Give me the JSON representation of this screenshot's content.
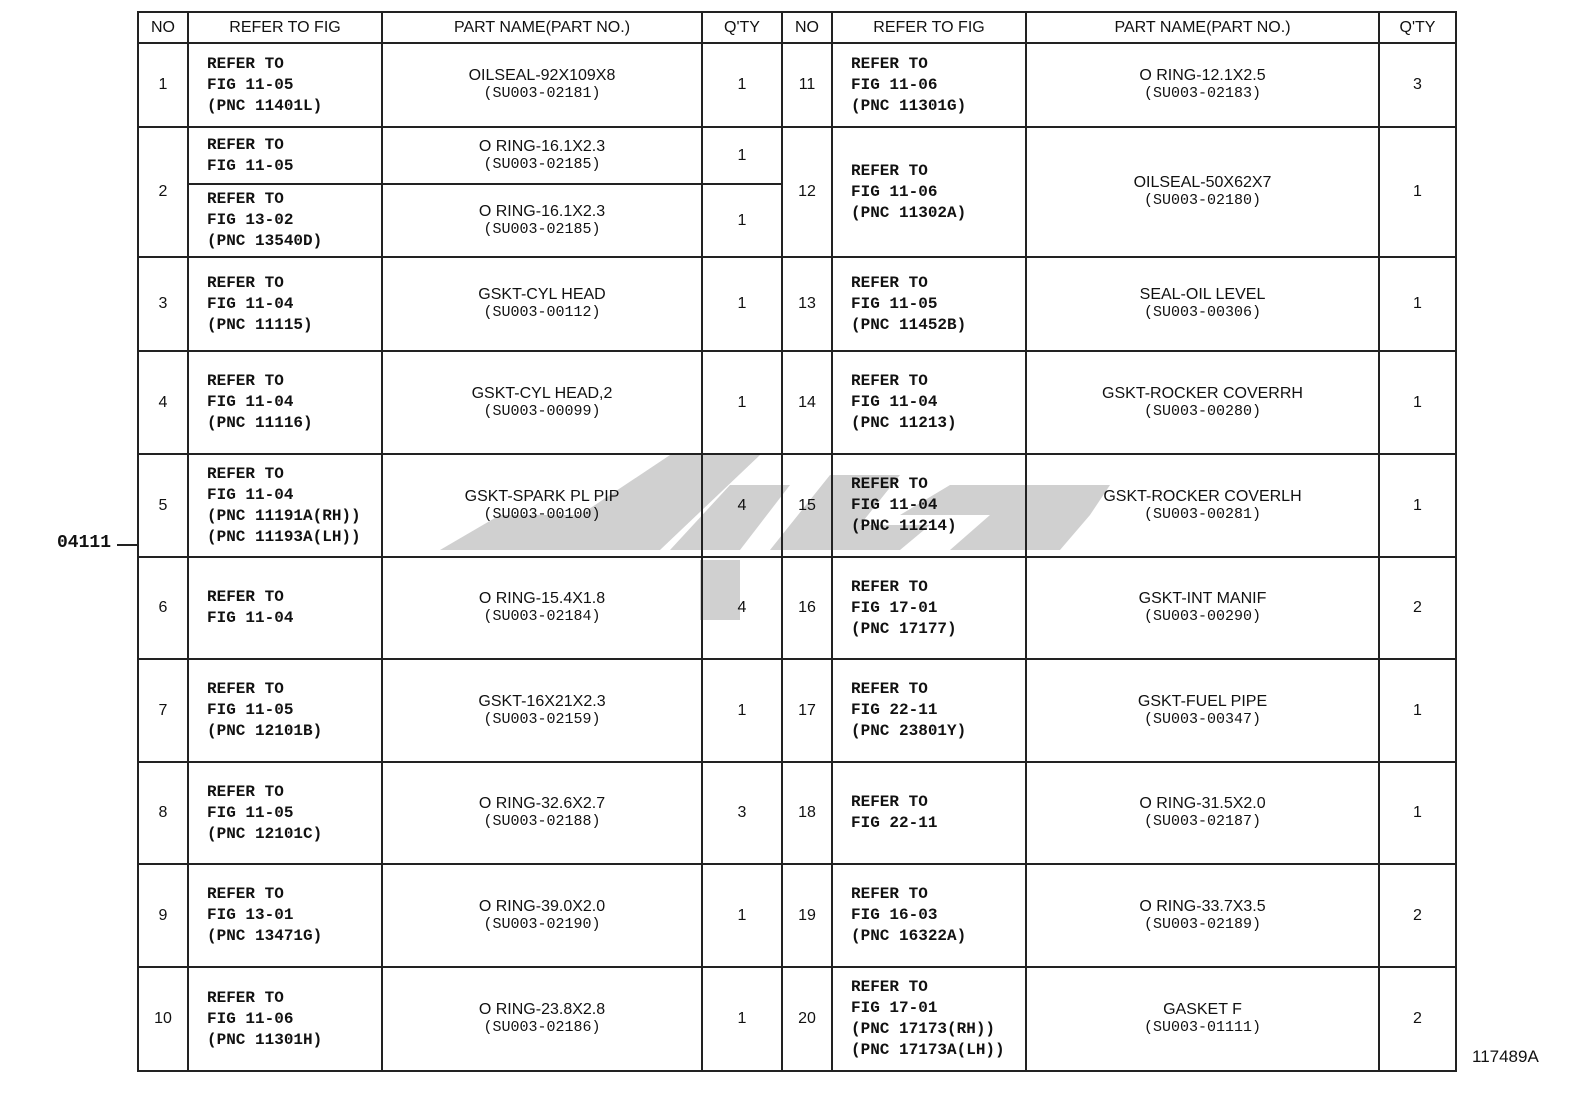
{
  "headers": {
    "no": "NO",
    "refer": "REFER TO FIG",
    "part": "PART NAME(PART NO.)",
    "qty": "Q'TY"
  },
  "left_rows": [
    {
      "no": "1",
      "entries": [
        {
          "refer": [
            "REFER TO",
            "FIG 11-05",
            "(PNC 11401L)"
          ],
          "name": "OILSEAL-92X109X8",
          "part_no": "(SU003-02181)",
          "qty": "1"
        }
      ]
    },
    {
      "no": "2",
      "entries": [
        {
          "refer": [
            "REFER TO",
            "FIG 11-05"
          ],
          "name": "O RING-16.1X2.3",
          "part_no": "(SU003-02185)",
          "qty": "1"
        },
        {
          "refer": [
            "REFER TO",
            "FIG 13-02",
            "(PNC 13540D)"
          ],
          "name": "O RING-16.1X2.3",
          "part_no": "(SU003-02185)",
          "qty": "1"
        }
      ]
    },
    {
      "no": "3",
      "entries": [
        {
          "refer": [
            "REFER TO",
            "FIG 11-04",
            "(PNC 11115)"
          ],
          "name": "GSKT-CYL HEAD",
          "part_no": "(SU003-00112)",
          "qty": "1"
        }
      ]
    },
    {
      "no": "4",
      "entries": [
        {
          "refer": [
            "REFER TO",
            "FIG 11-04",
            "(PNC 11116)"
          ],
          "name": "GSKT-CYL HEAD,2",
          "part_no": "(SU003-00099)",
          "qty": "1"
        }
      ]
    },
    {
      "no": "5",
      "entries": [
        {
          "refer": [
            "REFER TO",
            "FIG 11-04",
            "(PNC 11191A(RH))",
            "(PNC 11193A(LH))"
          ],
          "name": "GSKT-SPARK PL PIP",
          "part_no": "(SU003-00100)",
          "qty": "4"
        }
      ]
    },
    {
      "no": "6",
      "entries": [
        {
          "refer": [
            "REFER TO",
            "FIG 11-04"
          ],
          "name": "O RING-15.4X1.8",
          "part_no": "(SU003-02184)",
          "qty": "4"
        }
      ]
    },
    {
      "no": "7",
      "entries": [
        {
          "refer": [
            "REFER TO",
            "FIG 11-05",
            "(PNC 12101B)"
          ],
          "name": "GSKT-16X21X2.3",
          "part_no": "(SU003-02159)",
          "qty": "1"
        }
      ]
    },
    {
      "no": "8",
      "entries": [
        {
          "refer": [
            "REFER TO",
            "FIG 11-05",
            "(PNC 12101C)"
          ],
          "name": "O RING-32.6X2.7",
          "part_no": "(SU003-02188)",
          "qty": "3"
        }
      ]
    },
    {
      "no": "9",
      "entries": [
        {
          "refer": [
            "REFER TO",
            "FIG 13-01",
            "(PNC 13471G)"
          ],
          "name": "O RING-39.0X2.0",
          "part_no": "(SU003-02190)",
          "qty": "1"
        }
      ]
    },
    {
      "no": "10",
      "entries": [
        {
          "refer": [
            "REFER TO",
            "FIG 11-06",
            "(PNC 11301H)"
          ],
          "name": "O RING-23.8X2.8",
          "part_no": "(SU003-02186)",
          "qty": "1"
        }
      ]
    }
  ],
  "right_rows": [
    {
      "no": "11",
      "refer": [
        "REFER TO",
        "FIG 11-06",
        "(PNC 11301G)"
      ],
      "name": "O RING-12.1X2.5",
      "part_no": "(SU003-02183)",
      "qty": "3"
    },
    {
      "no": "12",
      "refer": [
        "REFER TO",
        "FIG 11-06",
        "(PNC 11302A)"
      ],
      "name": "OILSEAL-50X62X7",
      "part_no": "(SU003-02180)",
      "qty": "1"
    },
    {
      "no": "13",
      "refer": [
        "REFER TO",
        "FIG 11-05",
        "(PNC 11452B)"
      ],
      "name": "SEAL-OIL LEVEL",
      "part_no": "(SU003-00306)",
      "qty": "1"
    },
    {
      "no": "14",
      "refer": [
        "REFER TO",
        "FIG 11-04",
        "(PNC 11213)"
      ],
      "name": "GSKT-ROCKER COVERRH",
      "part_no": "(SU003-00280)",
      "qty": "1"
    },
    {
      "no": "15",
      "refer": [
        "REFER TO",
        "FIG 11-04",
        "(PNC 11214)"
      ],
      "name": "GSKT-ROCKER COVERLH",
      "part_no": "(SU003-00281)",
      "qty": "1"
    },
    {
      "no": "16",
      "refer": [
        "REFER TO",
        "FIG 17-01",
        "(PNC 17177)"
      ],
      "name": "GSKT-INT MANIF",
      "part_no": "(SU003-00290)",
      "qty": "2"
    },
    {
      "no": "17",
      "refer": [
        "REFER TO",
        "FIG 22-11",
        "(PNC 23801Y)"
      ],
      "name": "GSKT-FUEL PIPE",
      "part_no": "(SU003-00347)",
      "qty": "1"
    },
    {
      "no": "18",
      "refer": [
        "REFER TO",
        "FIG 22-11"
      ],
      "name": "O RING-31.5X2.0",
      "part_no": "(SU003-02187)",
      "qty": "1"
    },
    {
      "no": "19",
      "refer": [
        "REFER TO",
        "FIG 16-03",
        "(PNC 16322A)"
      ],
      "name": "O RING-33.7X3.5",
      "part_no": "(SU003-02189)",
      "qty": "2"
    },
    {
      "no": "20",
      "refer": [
        "REFER TO",
        "FIG 17-01",
        "(PNC 17173(RH))",
        "(PNC 17173A(LH))"
      ],
      "name": "GASKET F",
      "part_no": "(SU003-01111)",
      "qty": "2"
    }
  ],
  "callout_label": "04111",
  "figure_number": "117489A",
  "watermark_color": "#c8c8c8"
}
